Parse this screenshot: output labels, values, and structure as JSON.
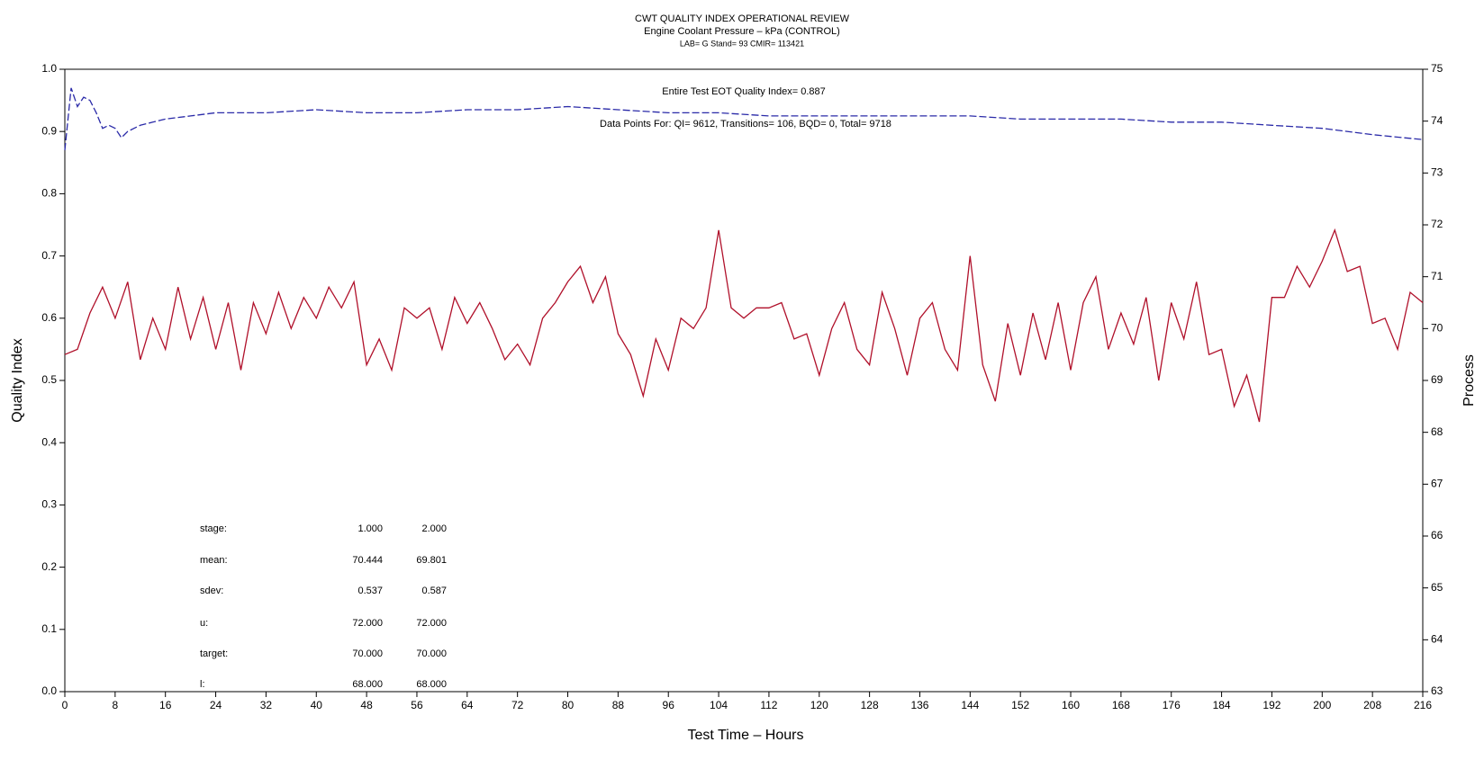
{
  "chart_data": {
    "type": "line",
    "title": "CWT QUALITY INDEX OPERATIONAL REVIEW",
    "subtitle": "Engine Coolant Pressure – kPa (CONTROL)",
    "subtitle2": "LAB= G Stand= 93 CMIR= 113421",
    "x_label": "Test Time – Hours",
    "y_label": "Quality Index",
    "y2_label": "Process",
    "annotations": [
      "Entire Test EOT Quality Index=   0.887",
      "Data Points For: QI=  9612, Transitions=   106, BQD=    0, Total=  9718"
    ],
    "stats": [
      {
        "label": "stage:",
        "values": [
          "1.000",
          "2.000"
        ]
      },
      {
        "label": "mean:",
        "values": [
          "70.444",
          "69.801"
        ]
      },
      {
        "label": "sdev:",
        "values": [
          "0.537",
          "0.587"
        ]
      },
      {
        "label": "u:",
        "values": [
          "72.000",
          "72.000"
        ]
      },
      {
        "label": "target:",
        "values": [
          "70.000",
          "70.000"
        ]
      },
      {
        "label": "l:",
        "values": [
          "68.000",
          "68.000"
        ]
      }
    ],
    "xlim": [
      0,
      216
    ],
    "xticks": [
      0,
      8,
      16,
      24,
      32,
      40,
      48,
      56,
      64,
      72,
      80,
      88,
      96,
      104,
      112,
      120,
      128,
      136,
      144,
      152,
      160,
      168,
      176,
      184,
      192,
      200,
      208,
      216
    ],
    "ylim": [
      0,
      1
    ],
    "yticks": [
      {
        "value": 0,
        "label": "0.0"
      },
      0.1,
      0.2,
      0.3,
      0.4,
      0.5,
      0.6,
      0.7,
      0.8,
      0.9,
      {
        "value": 1,
        "label": "1.0"
      }
    ],
    "y2lim": [
      63,
      75
    ],
    "y2ticks": [
      63,
      64,
      65,
      66,
      67,
      68,
      69,
      70,
      71,
      72,
      73,
      74,
      75
    ],
    "series": [
      {
        "color": "#2a2aa8",
        "dashed": true,
        "x": [
          0,
          1,
          2,
          3,
          4,
          5,
          6,
          7,
          8,
          9,
          10,
          11,
          12,
          14,
          16,
          20,
          24,
          32,
          40,
          48,
          56,
          64,
          72,
          80,
          88,
          96,
          104,
          112,
          120,
          128,
          136,
          144,
          152,
          160,
          168,
          176,
          184,
          192,
          200,
          208,
          216
        ],
        "values": [
          0.87,
          0.97,
          0.94,
          0.955,
          0.95,
          0.93,
          0.905,
          0.91,
          0.905,
          0.89,
          0.9,
          0.905,
          0.91,
          0.915,
          0.92,
          0.925,
          0.93,
          0.93,
          0.935,
          0.93,
          0.93,
          0.935,
          0.935,
          0.94,
          0.935,
          0.93,
          0.93,
          0.925,
          0.925,
          0.925,
          0.925,
          0.925,
          0.92,
          0.92,
          0.92,
          0.915,
          0.915,
          0.91,
          0.905,
          0.895,
          0.887
        ]
      },
      {
        "color": "#b0102a",
        "axis": "y2",
        "x": [
          0,
          2,
          4,
          6,
          8,
          10,
          12,
          14,
          16,
          18,
          20,
          22,
          24,
          26,
          28,
          30,
          32,
          34,
          36,
          38,
          40,
          42,
          44,
          46,
          48,
          50,
          52,
          54,
          56,
          58,
          60,
          62,
          64,
          66,
          68,
          70,
          72,
          74,
          76,
          78,
          80,
          82,
          84,
          86,
          88,
          90,
          92,
          94,
          96,
          98,
          100,
          102,
          104,
          106,
          108,
          110,
          112,
          114,
          116,
          118,
          120,
          122,
          124,
          126,
          128,
          130,
          132,
          134,
          136,
          138,
          140,
          142,
          144,
          146,
          148,
          150,
          152,
          154,
          156,
          158,
          160,
          162,
          164,
          166,
          168,
          170,
          172,
          174,
          176,
          178,
          180,
          182,
          184,
          186,
          188,
          190,
          192,
          194,
          196,
          198,
          200,
          202,
          204,
          206,
          208,
          210,
          212,
          214,
          216
        ],
        "values": [
          69.5,
          69.6,
          70.3,
          70.8,
          70.2,
          70.9,
          69.4,
          70.2,
          69.6,
          70.8,
          69.8,
          70.6,
          69.6,
          70.5,
          69.2,
          70.5,
          69.9,
          70.7,
          70.0,
          70.6,
          70.2,
          70.8,
          70.4,
          70.9,
          69.3,
          69.8,
          69.2,
          70.4,
          70.2,
          70.4,
          69.6,
          70.6,
          70.1,
          70.5,
          70.0,
          69.4,
          69.7,
          69.3,
          70.2,
          70.5,
          70.9,
          71.2,
          70.5,
          71.0,
          69.9,
          69.5,
          68.7,
          69.8,
          69.2,
          70.2,
          70.0,
          70.4,
          71.9,
          70.4,
          70.2,
          70.4,
          70.4,
          70.5,
          69.8,
          69.9,
          69.1,
          70.0,
          70.5,
          69.6,
          69.3,
          70.7,
          70.0,
          69.1,
          70.2,
          70.5,
          69.6,
          69.2,
          71.4,
          69.3,
          68.6,
          70.1,
          69.1,
          70.3,
          69.4,
          70.5,
          69.2,
          70.5,
          71.0,
          69.6,
          70.3,
          69.7,
          70.6,
          69.0,
          70.5,
          69.8,
          70.9,
          69.5,
          69.6,
          68.5,
          69.1,
          68.2,
          70.6,
          70.6,
          71.2,
          70.8,
          71.3,
          71.9,
          71.1,
          71.2,
          70.1,
          70.2,
          69.6,
          70.7,
          70.5
        ]
      }
    ]
  }
}
